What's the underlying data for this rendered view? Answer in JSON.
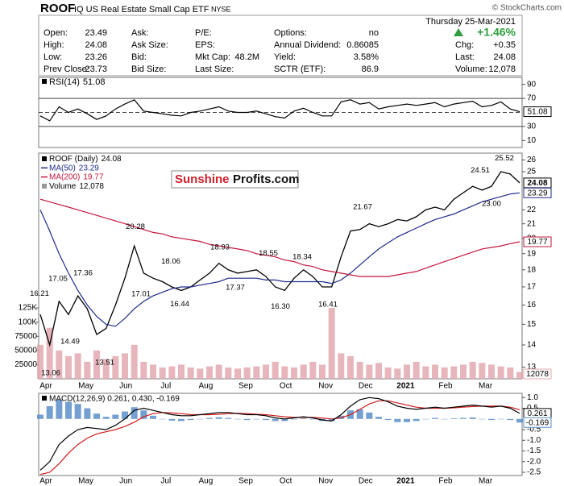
{
  "header": {
    "symbol": "ROOF",
    "name": "IQ US Real Estate Small Cap ETF",
    "exchange": "NYSE",
    "credit": "© StockCharts.com",
    "date": "Thursday 25-Mar-2021",
    "change_pct": "+1.46%"
  },
  "quote": {
    "rows": [
      [
        {
          "label": "Open:",
          "value": "23.49"
        },
        {
          "label": "Ask:"
        },
        {
          "label": "P/E:"
        },
        {
          "label": "Options:",
          "value": "no"
        }
      ],
      [
        {
          "label": "High:",
          "value": "24.08"
        },
        {
          "label": "Ask Size:"
        },
        {
          "label": "EPS:"
        },
        {
          "label": "Annual Dividend:",
          "value": "0.86085"
        },
        {
          "label": "Chg:",
          "value": "+0.35"
        }
      ],
      [
        {
          "label": "Low:",
          "value": "23.26"
        },
        {
          "label": "Bid:"
        },
        {
          "label": "Mkt Cap:",
          "value": "48.2M"
        },
        {
          "label": "Yield:",
          "value": "3.58%"
        },
        {
          "label": "Last:",
          "value": "24.08"
        }
      ],
      [
        {
          "label": "Prev Close:",
          "value": "23.73"
        },
        {
          "label": "Bid Size:"
        },
        {
          "label": "Last Size:"
        },
        {
          "label": "SCTR (ETF):",
          "value": "86.9"
        },
        {
          "label": "Volume:",
          "value": "12,078"
        }
      ]
    ]
  },
  "watermark": {
    "left": "Sunshine",
    "right": "Profits.com"
  },
  "chart_data": [
    {
      "type": "line",
      "ylim": [
        0,
        100
      ],
      "yticks": [
        10,
        30,
        70,
        90
      ],
      "levels": [
        70,
        50,
        30
      ],
      "series": [
        {
          "name": "RSI(14)",
          "color": "#000000",
          "values": [
            45,
            38,
            58,
            50,
            55,
            48,
            40,
            45,
            55,
            62,
            68,
            52,
            50,
            48,
            46,
            45,
            50,
            52,
            55,
            58,
            52,
            50,
            50,
            52,
            48,
            44,
            42,
            52,
            56,
            50,
            45,
            45,
            65,
            68,
            62,
            64,
            55,
            58,
            60,
            62,
            60,
            62,
            64,
            58,
            62,
            64,
            66,
            58,
            60,
            65,
            55,
            51.08
          ]
        }
      ]
    },
    {
      "type": "line",
      "log": true,
      "ylim": [
        12.5,
        26.6
      ],
      "yticks": [
        13,
        14,
        15,
        16,
        17,
        18,
        19,
        20,
        21,
        22,
        25,
        26
      ],
      "y2lim": [
        0,
        398000
      ],
      "y2ticks": [
        25000,
        50000,
        75000,
        {
          "value": 100000,
          "label": "100K"
        },
        {
          "value": 125000,
          "label": "125K"
        }
      ],
      "x_labels": [
        "Apr",
        "May",
        "Jun",
        "Jul",
        "Aug",
        "Sep",
        "Oct",
        "Nov",
        "Dec",
        "2021",
        "Feb",
        "Mar"
      ],
      "series": [
        {
          "name": "ROOF (Daily)",
          "color": "#000000",
          "values": [
            15.5,
            14.0,
            16.2,
            15.5,
            16.5,
            15.8,
            14.5,
            14.8,
            16.0,
            17.5,
            19.5,
            17.8,
            17.5,
            17.3,
            17.0,
            16.8,
            17.0,
            17.4,
            17.8,
            18.4,
            18.0,
            17.8,
            17.9,
            18.0,
            17.6,
            17.0,
            16.8,
            17.5,
            18.0,
            17.6,
            17.0,
            17.0,
            18.8,
            20.5,
            20.6,
            21.0,
            20.8,
            21.0,
            21.3,
            21.2,
            21.5,
            22.0,
            22.2,
            22.0,
            22.8,
            23.3,
            23.8,
            23.5,
            23.8,
            25.0,
            24.8,
            24.08
          ]
        },
        {
          "name": "MA(50)",
          "color": "#1f2a8a",
          "values": [
            22.0,
            20.5,
            19.0,
            17.8,
            16.8,
            16.0,
            15.4,
            15.0,
            14.9,
            15.3,
            15.8,
            16.2,
            16.5,
            16.7,
            16.9,
            17.0,
            17.0,
            17.1,
            17.2,
            17.3,
            17.5,
            17.5,
            17.5,
            17.5,
            17.4,
            17.4,
            17.3,
            17.3,
            17.3,
            17.3,
            17.3,
            17.2,
            17.4,
            17.8,
            18.3,
            18.8,
            19.3,
            19.7,
            20.1,
            20.4,
            20.7,
            21.0,
            21.3,
            21.5,
            21.7,
            22.0,
            22.3,
            22.6,
            22.8,
            23.0,
            23.2,
            23.29
          ]
        },
        {
          "name": "MA(200)",
          "color": "#c4163b",
          "values": [
            22.8,
            22.6,
            22.4,
            22.2,
            22.0,
            21.8,
            21.6,
            21.4,
            21.2,
            21.0,
            20.8,
            20.6,
            20.4,
            20.3,
            20.1,
            20.0,
            19.9,
            19.8,
            19.6,
            19.5,
            19.4,
            19.3,
            19.2,
            19.0,
            18.9,
            18.8,
            18.6,
            18.5,
            18.3,
            18.2,
            18.0,
            17.9,
            17.8,
            17.7,
            17.6,
            17.6,
            17.6,
            17.6,
            17.7,
            17.8,
            17.9,
            18.1,
            18.3,
            18.5,
            18.7,
            18.9,
            19.1,
            19.3,
            19.4,
            19.5,
            19.65,
            19.77
          ]
        },
        {
          "name": "Volume",
          "type": "bar",
          "axis": "y2",
          "color": "#e3a9b0",
          "last_label": "12,078",
          "values": [
            60000,
            90000,
            50000,
            40000,
            45000,
            30000,
            50000,
            35000,
            40000,
            45000,
            60000,
            30000,
            25000,
            20000,
            22000,
            25000,
            20000,
            18000,
            22000,
            25000,
            20000,
            18000,
            20000,
            22000,
            25000,
            30000,
            22000,
            20000,
            25000,
            30000,
            25000,
            125000,
            45000,
            40000,
            30000,
            25000,
            28000,
            20000,
            18000,
            25000,
            30000,
            22000,
            25000,
            20000,
            22000,
            25000,
            30000,
            28000,
            25000,
            22000,
            20000,
            12078
          ]
        }
      ],
      "annotations": [
        16.21,
        13.06,
        17.05,
        14.49,
        17.36,
        13.51,
        20.28,
        17.01,
        18.06,
        16.44,
        18.93,
        17.37,
        18.55,
        18.34,
        {
          "value": 16.3,
          "label": "16.30"
        },
        16.41,
        21.67,
        24.51,
        25.52,
        {
          "value": 23,
          "label": "23.00"
        }
      ]
    },
    {
      "type": "line",
      "legend": "MACD(12,26,9) 0.261, 0.430, -0.169",
      "ylim": [
        -2.65,
        1.2
      ],
      "yticks": [
        {
          "value": 1,
          "label": "1.0"
        },
        0.5,
        -0.5,
        {
          "value": -1,
          "label": "-1.0"
        },
        -1.5,
        {
          "value": -2,
          "label": "-2.0"
        },
        -2.5
      ],
      "series": [
        {
          "color": "#5a8fc8",
          "type": "bar",
          "values": [
            0.2,
            0.6,
            0.9,
            0.8,
            0.7,
            0.5,
            0.25,
            0.1,
            0.2,
            0.35,
            0.55,
            0.4,
            0.15,
            0.0,
            -0.08,
            -0.1,
            -0.05,
            0.0,
            0.05,
            0.08,
            0.05,
            -0.01,
            -0.05,
            -0.02,
            -0.05,
            -0.1,
            -0.1,
            -0.02,
            0.03,
            -0.02,
            -0.09,
            -0.1,
            0.15,
            0.4,
            0.45,
            0.3,
            0.1,
            -0.05,
            -0.15,
            -0.15,
            -0.1,
            0.0,
            0.05,
            0.0,
            0.03,
            0.05,
            0.07,
            0.0,
            -0.05,
            0.0,
            -0.05,
            -0.169
          ]
        },
        {
          "color": "#d01c1c",
          "last_label": "0.430",
          "values": [
            -2.6,
            -2.5,
            -2.1,
            -1.6,
            -1.2,
            -0.9,
            -0.7,
            -0.6,
            -0.5,
            -0.35,
            -0.15,
            0.1,
            0.25,
            0.3,
            0.28,
            0.25,
            0.2,
            0.2,
            0.2,
            0.22,
            0.25,
            0.26,
            0.25,
            0.22,
            0.2,
            0.15,
            0.1,
            0.07,
            0.07,
            0.07,
            0.04,
            0.0,
            0.05,
            0.2,
            0.45,
            0.7,
            0.85,
            0.85,
            0.75,
            0.65,
            0.55,
            0.5,
            0.5,
            0.5,
            0.52,
            0.55,
            0.58,
            0.6,
            0.6,
            0.6,
            0.55,
            0.43
          ]
        },
        {
          "color": "#000000",
          "values": [
            -2.4,
            -2.0,
            -1.2,
            -0.8,
            -0.5,
            -0.4,
            -0.45,
            -0.5,
            -0.3,
            0.0,
            0.4,
            0.5,
            0.4,
            0.3,
            0.2,
            0.15,
            0.15,
            0.2,
            0.25,
            0.3,
            0.3,
            0.25,
            0.2,
            0.2,
            0.15,
            0.05,
            0.0,
            0.05,
            0.1,
            0.05,
            -0.05,
            -0.1,
            0.2,
            0.6,
            0.9,
            1.0,
            0.95,
            0.8,
            0.6,
            0.5,
            0.45,
            0.5,
            0.55,
            0.5,
            0.55,
            0.6,
            0.65,
            0.6,
            0.55,
            0.6,
            0.5,
            0.261
          ]
        }
      ]
    }
  ]
}
